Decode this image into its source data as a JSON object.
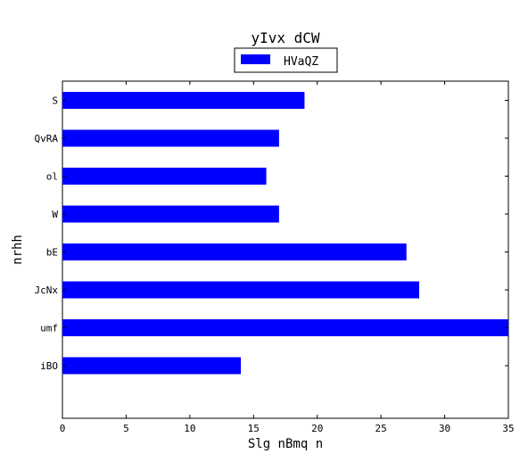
{
  "chart_data": {
    "type": "bar",
    "orientation": "horizontal",
    "title": "yIvx dCW",
    "xlabel": "Slg nBmq n",
    "ylabel": "nrhh",
    "categories": [
      "S",
      "QvRA",
      "ol",
      "W",
      "bE",
      "JcNx",
      "umf",
      "iBO"
    ],
    "series": [
      {
        "name": "HVaQZ",
        "values": [
          19,
          17,
          16,
          17,
          27,
          28,
          35,
          14
        ],
        "color": "#0000ff"
      }
    ],
    "xlim": [
      0,
      35
    ],
    "xticks": [
      0,
      5,
      10,
      15,
      20,
      25,
      30,
      35
    ],
    "grid": false,
    "legend": "top-center"
  }
}
